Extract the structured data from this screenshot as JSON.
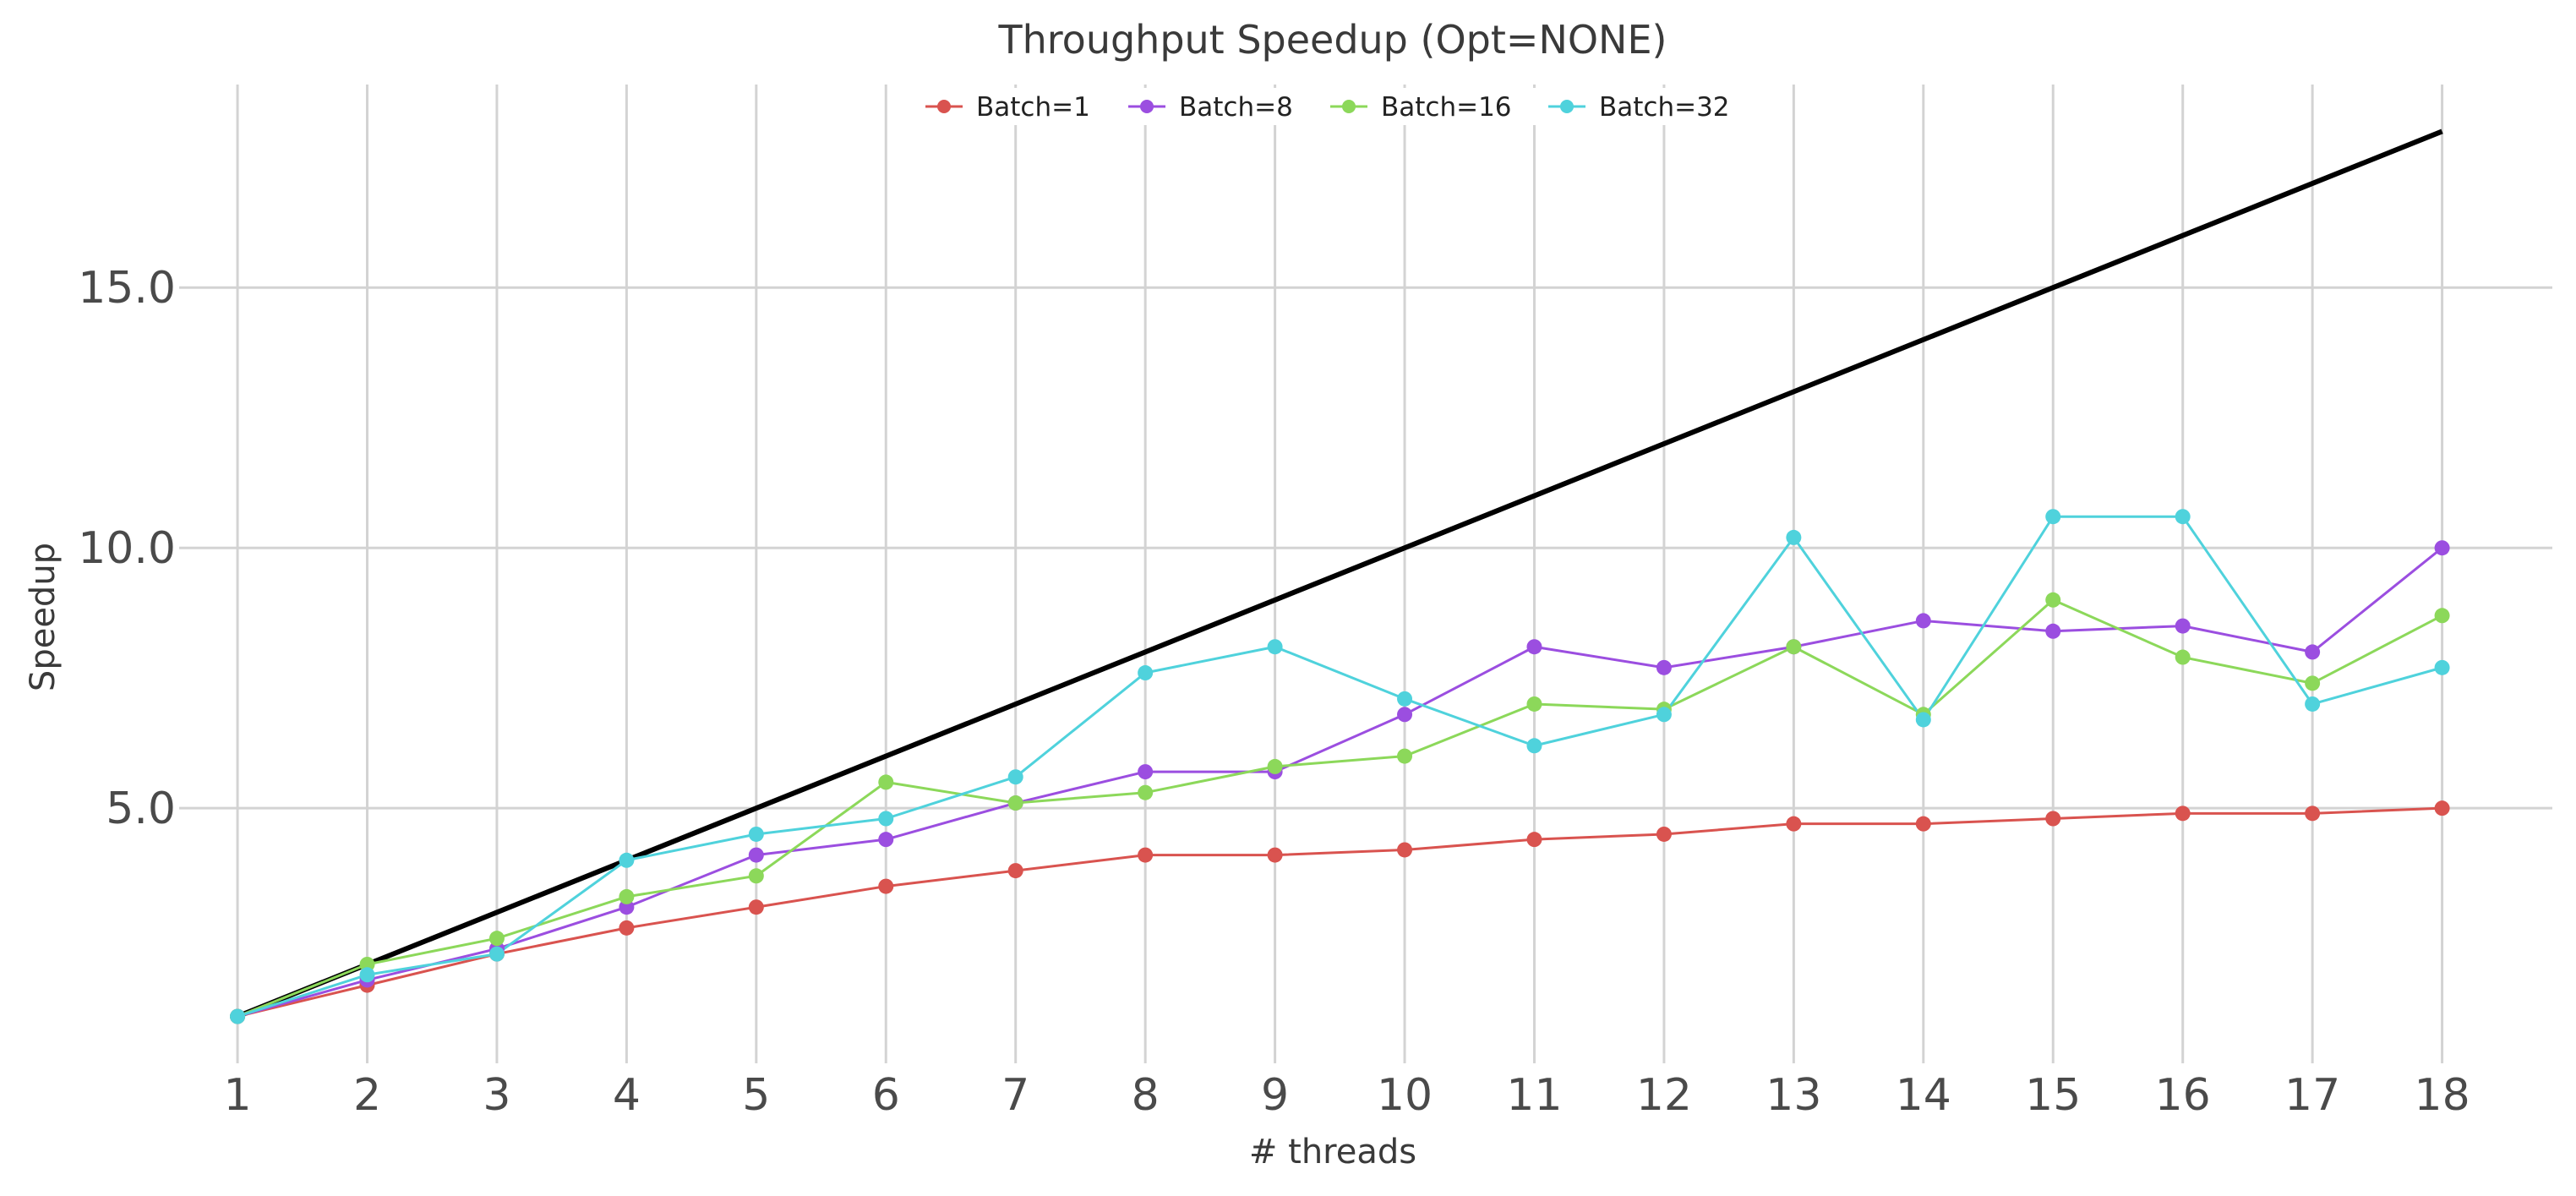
{
  "chart_data": {
    "type": "line",
    "title": "Throughput Speedup (Opt=NONE)",
    "xlabel": "# threads",
    "ylabel": "Speedup",
    "x": [
      1,
      2,
      3,
      4,
      5,
      6,
      7,
      8,
      9,
      10,
      11,
      12,
      13,
      14,
      15,
      16,
      17,
      18
    ],
    "xlim": [
      0.55,
      18.85
    ],
    "ylim": [
      0.1,
      18.9
    ],
    "yticks": [
      5.0,
      10.0,
      15.0
    ],
    "ytick_labels": [
      "5.0",
      "10.0",
      "15.0"
    ],
    "grid": true,
    "legend_position": "top-center",
    "series": [
      {
        "name": "Batch=1",
        "color": "#d9534f",
        "values": [
          1.0,
          1.6,
          2.2,
          2.7,
          3.1,
          3.5,
          3.8,
          4.1,
          4.1,
          4.2,
          4.4,
          4.5,
          4.7,
          4.7,
          4.8,
          4.9,
          4.9,
          5.0
        ]
      },
      {
        "name": "Batch=8",
        "color": "#9b4ee0",
        "values": [
          1.0,
          1.7,
          2.3,
          3.1,
          4.1,
          4.4,
          5.1,
          5.7,
          5.7,
          6.8,
          8.1,
          7.7,
          8.1,
          8.6,
          8.4,
          8.5,
          8.0,
          10.0
        ]
      },
      {
        "name": "Batch=16",
        "color": "#8cd85a",
        "values": [
          1.0,
          2.0,
          2.5,
          3.3,
          3.7,
          5.5,
          5.1,
          5.3,
          5.8,
          6.0,
          7.0,
          6.9,
          8.1,
          6.8,
          9.0,
          7.9,
          7.4,
          8.7
        ]
      },
      {
        "name": "Batch=32",
        "color": "#4fd2dc",
        "values": [
          1.0,
          1.8,
          2.2,
          4.0,
          4.5,
          4.8,
          5.6,
          7.6,
          8.1,
          7.1,
          6.2,
          6.8,
          10.2,
          6.7,
          10.6,
          10.6,
          7.0,
          7.7
        ]
      }
    ],
    "reference_line": {
      "color": "#000000",
      "x": [
        1,
        18
      ],
      "y": [
        1,
        18
      ]
    }
  }
}
